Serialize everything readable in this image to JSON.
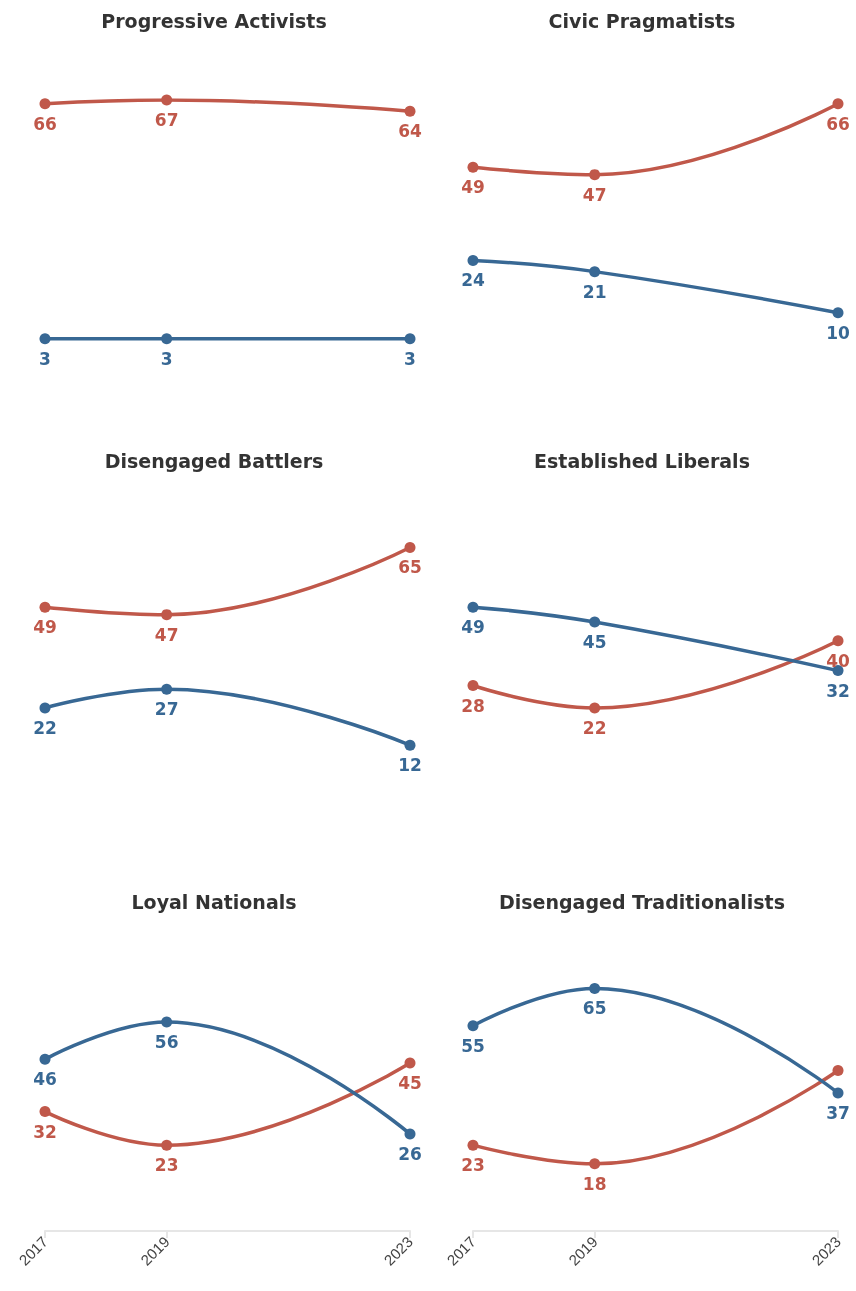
{
  "chart_data": [
    {
      "type": "line",
      "title": "Progressive Activists",
      "x": [
        2017,
        2019,
        2023
      ],
      "xlim": [
        2017,
        2023
      ],
      "xticks": [
        2017,
        2019,
        2023
      ],
      "tick_labels": false,
      "data_labels": true,
      "marker": "circle",
      "series": [
        {
          "color": "#c0584a",
          "values": [
            66,
            67,
            64
          ]
        },
        {
          "color": "#386894",
          "values": [
            3,
            3,
            3
          ]
        }
      ]
    },
    {
      "type": "line",
      "title": "Civic Pragmatists",
      "x": [
        2017,
        2019,
        2023
      ],
      "xlim": [
        2017,
        2023
      ],
      "xticks": [
        2017,
        2019,
        2023
      ],
      "tick_labels": false,
      "data_labels": true,
      "marker": "circle",
      "series": [
        {
          "color": "#c0584a",
          "values": [
            49,
            47,
            66
          ]
        },
        {
          "color": "#386894",
          "values": [
            24,
            21,
            10
          ]
        }
      ]
    },
    {
      "type": "line",
      "title": "Disengaged Battlers",
      "x": [
        2017,
        2019,
        2023
      ],
      "xlim": [
        2017,
        2023
      ],
      "xticks": [
        2017,
        2019,
        2023
      ],
      "tick_labels": false,
      "data_labels": true,
      "marker": "circle",
      "series": [
        {
          "color": "#c0584a",
          "values": [
            49,
            47,
            65
          ]
        },
        {
          "color": "#386894",
          "values": [
            22,
            27,
            12
          ]
        }
      ]
    },
    {
      "type": "line",
      "title": "Established Liberals",
      "x": [
        2017,
        2019,
        2023
      ],
      "xlim": [
        2017,
        2023
      ],
      "xticks": [
        2017,
        2019,
        2023
      ],
      "tick_labels": false,
      "data_labels": true,
      "marker": "circle",
      "series": [
        {
          "color": "#c0584a",
          "values": [
            28,
            22,
            40
          ]
        },
        {
          "color": "#386894",
          "values": [
            49,
            45,
            32
          ]
        }
      ]
    },
    {
      "type": "line",
      "title": "Loyal Nationals",
      "x": [
        2017,
        2019,
        2023
      ],
      "xlim": [
        2017,
        2023
      ],
      "xticks": [
        2017,
        2019,
        2023
      ],
      "tick_labels": "x",
      "data_labels": true,
      "marker": "circle",
      "series": [
        {
          "color": "#c0584a",
          "values": [
            32,
            23,
            45
          ]
        },
        {
          "color": "#386894",
          "values": [
            46,
            56,
            26
          ]
        }
      ]
    },
    {
      "type": "line",
      "title": "Disengaged Traditionalists",
      "x": [
        2017,
        2019,
        2023
      ],
      "xlim": [
        2017,
        2023
      ],
      "xticks": [
        2017,
        2019,
        2023
      ],
      "tick_labels": "x",
      "marker": "circle",
      "series": [
        {
          "color": "#c0584a",
          "values": [
            23,
            18,
            43
          ],
          "value_labels": [
            "23",
            "18",
            null
          ]
        },
        {
          "color": "#386894",
          "values": [
            55,
            65,
            37
          ],
          "value_labels": [
            "55",
            "65",
            "37"
          ]
        }
      ]
    }
  ]
}
